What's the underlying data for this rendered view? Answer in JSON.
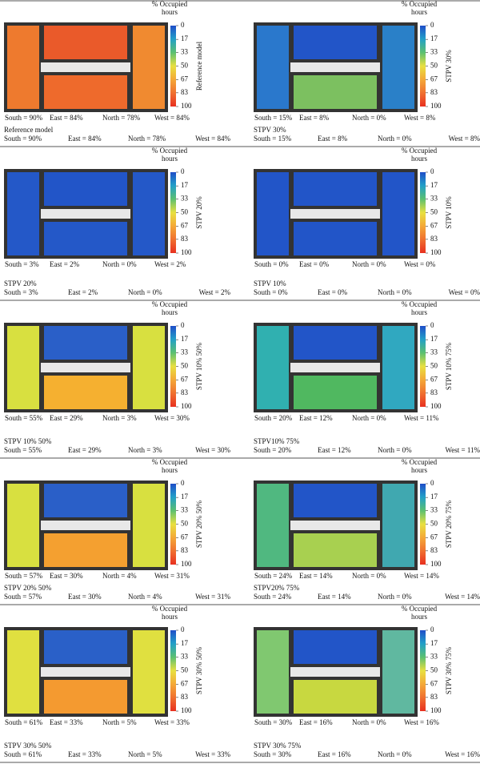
{
  "colorbar": {
    "title_lines": [
      "% Occupied",
      "hours"
    ],
    "lim": [
      0,
      100
    ],
    "ticks": [
      0,
      17,
      33,
      50,
      67,
      83,
      100
    ],
    "colors": [
      "#1f4ec8",
      "#22a0c8",
      "#5cc070",
      "#e8e040",
      "#f4a838",
      "#f07030",
      "#e83020"
    ]
  },
  "panels": [
    {
      "side_label": "Reference model",
      "caption": "Reference model",
      "labels": [
        "South = 90%",
        "East = 84%",
        "North = 78%",
        "West = 84%"
      ],
      "colors": [
        "#ee7a2e",
        "#ea5a2a",
        "#ee6a2c",
        "#f08a30"
      ]
    },
    {
      "side_label": "STPV 30%",
      "caption": "STPV 30%",
      "labels": [
        "South = 15%",
        "East = 8%",
        "North = 0%",
        "West = 8%"
      ],
      "colors": [
        "#2a78cc",
        "#2255c8",
        "#7cc060",
        "#2a80c8"
      ]
    },
    {
      "side_label": "STPV 20%",
      "caption": "STPV 20%",
      "labels": [
        "South = 3%",
        "East = 2%",
        "North = 0%",
        "West = 2%"
      ],
      "colors": [
        "#2458c8",
        "#2255c8",
        "#2458c8",
        "#2458c8"
      ]
    },
    {
      "side_label": "STPV 10%",
      "caption": "STPV 10%",
      "labels": [
        "South = 0%",
        "East = 0%",
        "North = 0%",
        "West = 0%"
      ],
      "colors": [
        "#2255c8",
        "#2255c8",
        "#2255c8",
        "#2255c8"
      ]
    },
    {
      "side_label": "STPV 10% 50%",
      "caption": "STPV 10% 50%",
      "labels": [
        "South = 55%",
        "East = 29%",
        "North = 3%",
        "West = 30%"
      ],
      "colors": [
        "#d8e040",
        "#2a5fc8",
        "#f5b030",
        "#d8e040"
      ]
    },
    {
      "side_label": "STPV 10% 75%",
      "caption": "STPV10% 75%",
      "labels": [
        "South = 20%",
        "East = 12%",
        "North = 0%",
        "West = 11%"
      ],
      "colors": [
        "#30b0b0",
        "#2255c8",
        "#50b860",
        "#30a8c0"
      ]
    },
    {
      "side_label": "STPV 20% 50%",
      "caption": "STPV 20% 50%",
      "labels": [
        "South = 57%",
        "East = 30%",
        "North = 4%",
        "West = 31%"
      ],
      "colors": [
        "#d8e040",
        "#2a5fc8",
        "#f4a030",
        "#d8e040"
      ]
    },
    {
      "side_label": "STPV 20% 75%",
      "caption": "STPV20% 75%",
      "labels": [
        "South = 24%",
        "East = 14%",
        "North = 0%",
        "West = 14%"
      ],
      "colors": [
        "#50b880",
        "#2255c8",
        "#a8d050",
        "#40a8b0"
      ]
    },
    {
      "side_label": "STPV 30% 50%",
      "caption": "STPV 30% 50%",
      "labels": [
        "South = 61%",
        "East = 33%",
        "North = 5%",
        "West = 33%"
      ],
      "colors": [
        "#e0e040",
        "#2a60c8",
        "#f49a30",
        "#e0e040"
      ]
    },
    {
      "side_label": "STPV 30% 75%",
      "caption": "STPV 30% 75%",
      "labels": [
        "South = 30%",
        "East = 16%",
        "North = 0%",
        "West = 16%"
      ],
      "colors": [
        "#80c870",
        "#2255c8",
        "#c8d840",
        "#60b8a0"
      ]
    }
  ]
}
